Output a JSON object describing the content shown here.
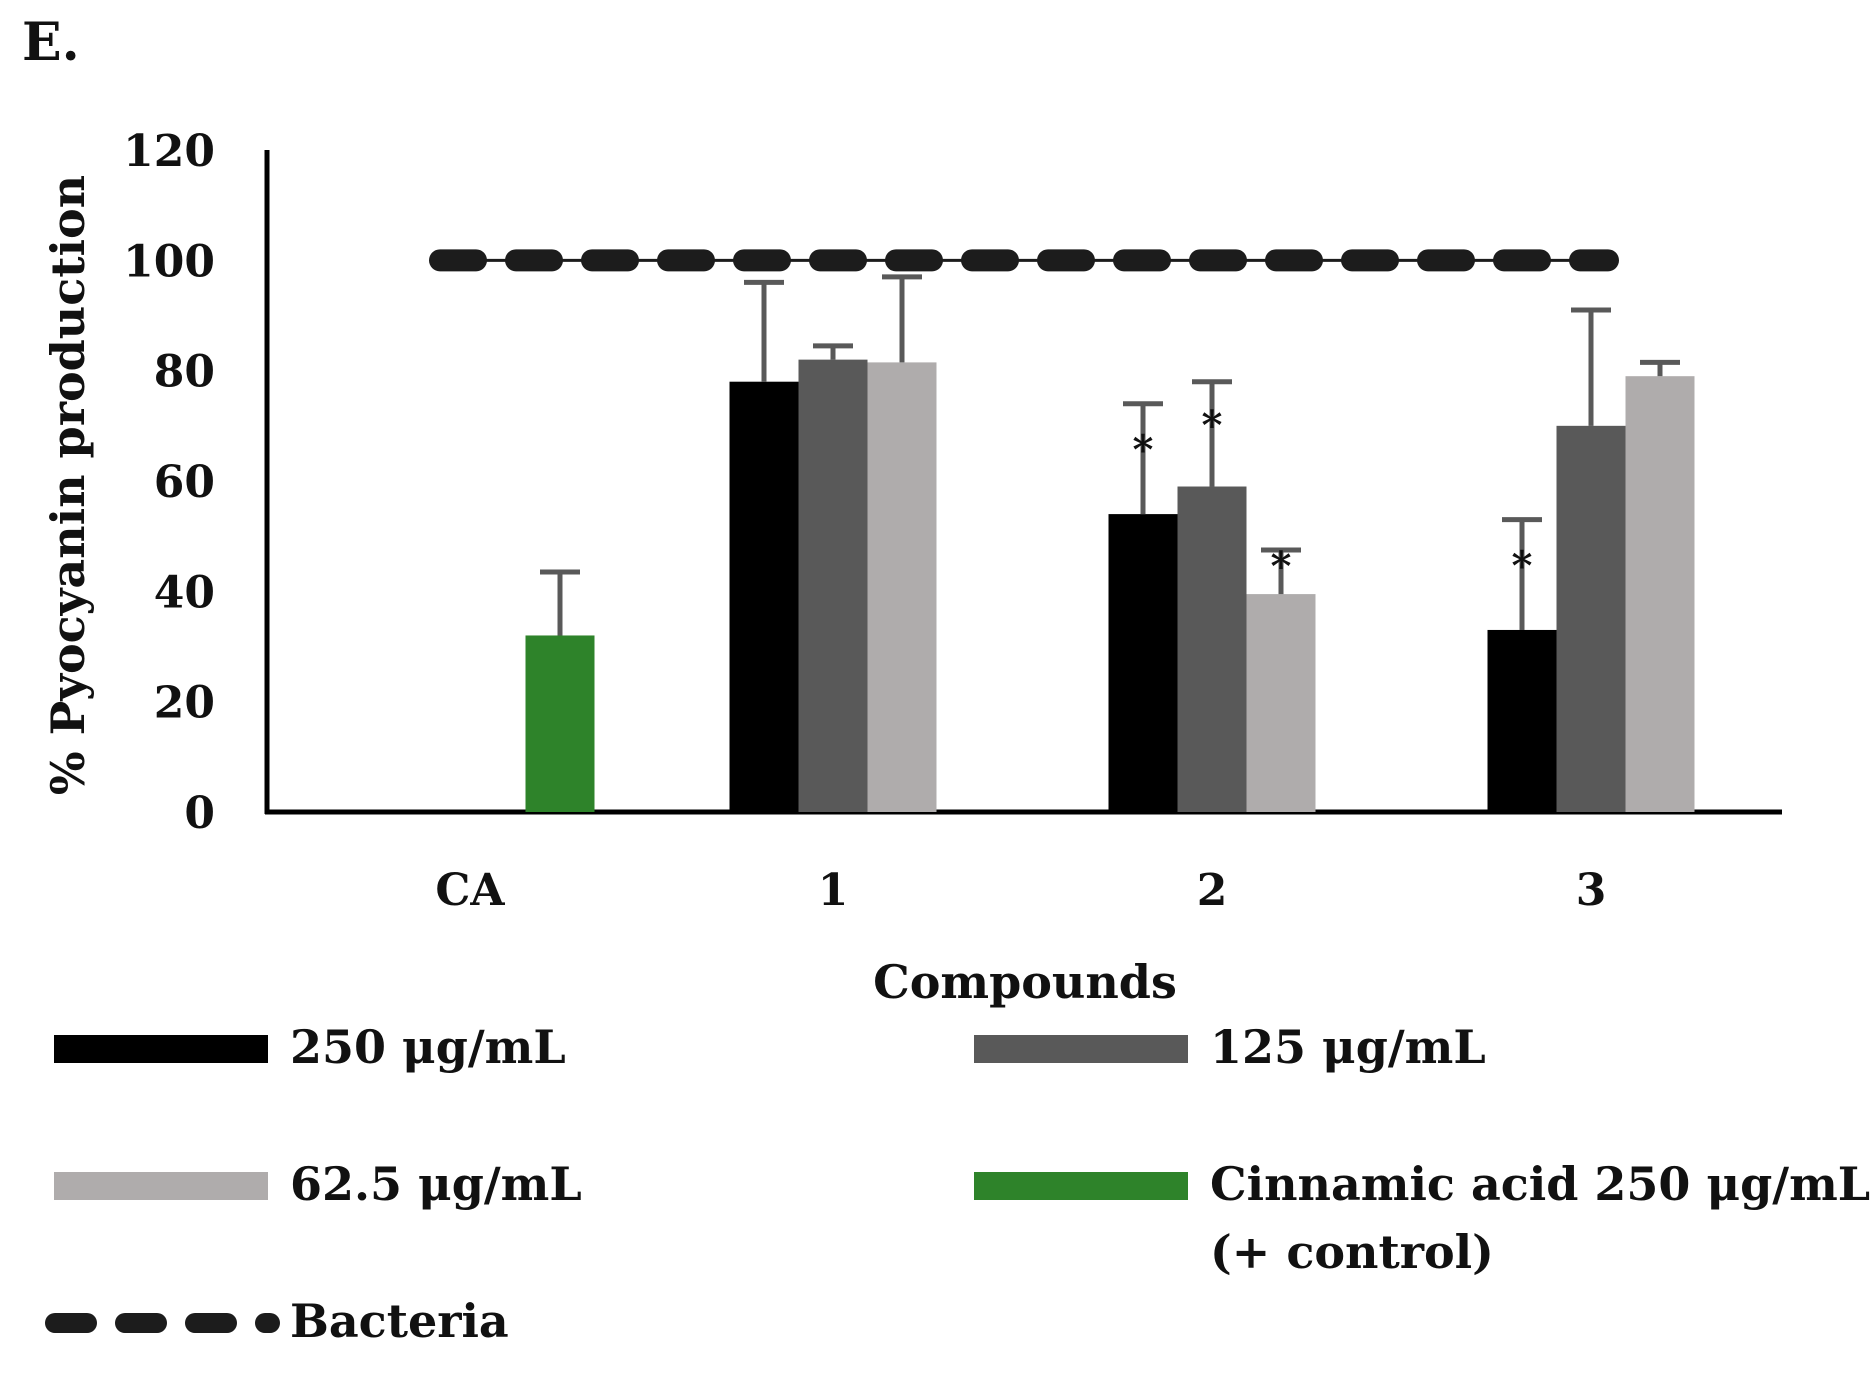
{
  "panel_label": "E.",
  "chart_data": {
    "type": "bar",
    "categories": [
      "CA",
      "1",
      "2",
      "3"
    ],
    "ylabel": "% Pyocyanin production",
    "xlabel": "Compounds",
    "ylim": [
      0,
      120
    ],
    "yticks": [
      "0",
      "20",
      "40",
      "60",
      "80",
      "100",
      "120"
    ],
    "series": [
      {
        "name": "250 μg/mL",
        "color": "#000000",
        "values": [
          null,
          78,
          54,
          33
        ],
        "errors": [
          null,
          18,
          20,
          20
        ],
        "significant": [
          false,
          false,
          true,
          true
        ]
      },
      {
        "name": "125 μg/mL",
        "color": "#595959",
        "values": [
          null,
          82,
          59,
          70
        ],
        "errors": [
          null,
          2.5,
          19,
          21
        ],
        "significant": [
          false,
          false,
          true,
          false
        ]
      },
      {
        "name": "62.5 μg/mL",
        "color": "#afacac",
        "values": [
          null,
          81.5,
          39.5,
          79
        ],
        "errors": [
          null,
          15.5,
          8,
          2.5
        ],
        "significant": [
          false,
          false,
          true,
          false
        ]
      },
      {
        "name": "Cinnamic acid 250 μg/mL",
        "color": "#2e832a",
        "values": [
          32,
          null,
          null,
          null
        ],
        "errors": [
          11.5,
          null,
          null,
          null
        ],
        "significant": [
          false,
          false,
          false,
          false
        ]
      }
    ],
    "reference_line": {
      "name": "Bacteria",
      "value": 100,
      "color": "#1c1c1c"
    },
    "significance_marker": "*"
  },
  "legend": {
    "items": [
      {
        "label": "250 μg/mL",
        "color": "#000000",
        "style": "solid"
      },
      {
        "label": "125 μg/mL",
        "color": "#595959",
        "style": "solid"
      },
      {
        "label": "62.5 μg/mL",
        "color": "#afacac",
        "style": "solid"
      },
      {
        "label": "Cinnamic acid 250 μg/mL",
        "sublabel": "(+ control)",
        "color": "#2e832a",
        "style": "solid"
      },
      {
        "label": "Bacteria",
        "color": "#1c1c1c",
        "style": "dashed"
      }
    ]
  }
}
